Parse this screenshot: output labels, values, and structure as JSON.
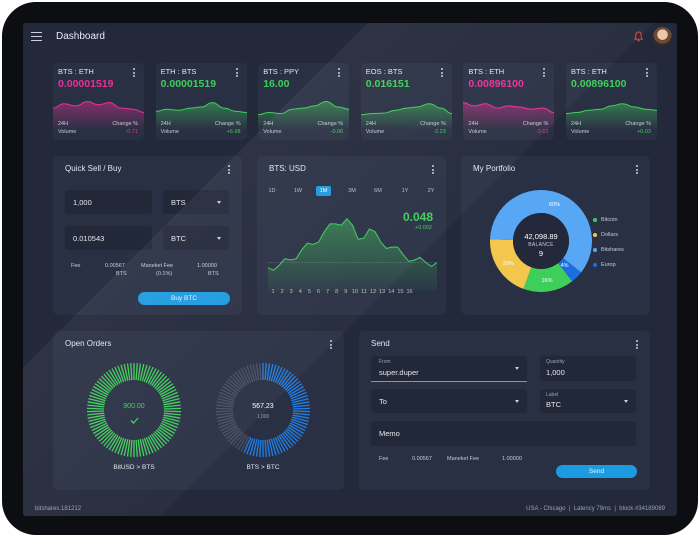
{
  "header": {
    "title": "Dashboard"
  },
  "tickers": [
    {
      "pair": "BTS : ETH",
      "price": "0.00001519",
      "price_color": "#ee2e9a",
      "period": "24H",
      "volume_label": "Volume",
      "change_label": "Change %",
      "change": "-0.71",
      "change_color": "#ee2e9a"
    },
    {
      "pair": "ETH : BTS",
      "price": "0.00001519",
      "price_color": "#3ecf5a",
      "period": "24H",
      "volume_label": "Volume",
      "change_label": "Change %",
      "change": "+6.68",
      "change_color": "#3ecf5a"
    },
    {
      "pair": "BTS : PPY",
      "price": "16.00",
      "price_color": "#3ecf5a",
      "period": "24H",
      "volume_label": "Volume",
      "change_label": "Change %",
      "change": "-0.06",
      "change_color": "#3ecf5a"
    },
    {
      "pair": "EOS : BTS",
      "price": "0.016151",
      "price_color": "#3ecf5a",
      "period": "24H",
      "volume_label": "Volume",
      "change_label": "Change %",
      "change": "-2.23",
      "change_color": "#3ecf5a"
    },
    {
      "pair": "BTS : ETH",
      "price": "0.00896100",
      "price_color": "#ee2e9a",
      "period": "24H",
      "volume_label": "Volume",
      "change_label": "Change %",
      "change": "-3.62",
      "change_color": "#ee2e9a"
    },
    {
      "pair": "BTS : ETH",
      "price": "0.00896100",
      "price_color": "#3ecf5a",
      "period": "24H",
      "volume_label": "Volume",
      "change_label": "Change %",
      "change": "+0.03",
      "change_color": "#3ecf5a"
    }
  ],
  "quick": {
    "title": "Quick Sell / Buy",
    "amount": "1,000",
    "asset1": "BTS",
    "price": "0.010543",
    "asset2": "BTC",
    "fee_label": "Fee",
    "fee_value": "0.00567",
    "fee_unit": "BTS",
    "market_fee_label": "Maneket Fee",
    "market_fee_pct": "(0.1%)",
    "market_fee_value": "1.00000",
    "market_fee_unit": "BTS",
    "button": "Buy BTC"
  },
  "btsusd": {
    "title": "BTS: USD",
    "ranges": [
      "1D",
      "1W",
      "1M",
      "3M",
      "6M",
      "1Y",
      "2Y"
    ],
    "active_range": "1M",
    "value": "0.048",
    "change": "+0.002"
  },
  "portfolio": {
    "title": "My Portfolio",
    "total": "42,098.89",
    "balance_label": "BALANCE",
    "balance_count": "9",
    "legend": [
      {
        "name": "Bitcoin",
        "color": "#3ecf5a"
      },
      {
        "name": "Dollars",
        "color": "#f3c64c"
      },
      {
        "name": "Bitshares",
        "color": "#58a7f5"
      },
      {
        "name": "Europ",
        "color": "#1a6fe0"
      }
    ]
  },
  "chart_data": [
    {
      "type": "area",
      "title": "BTS: USD",
      "x": [
        1,
        2,
        3,
        4,
        5,
        6,
        7,
        8,
        9,
        10,
        11,
        12,
        13,
        14,
        15,
        16
      ],
      "series": [
        {
          "values": [
            0.034,
            0.035,
            0.037,
            0.041,
            0.043,
            0.048,
            0.051,
            0.053,
            0.045,
            0.049,
            0.044,
            0.042,
            0.039,
            0.037,
            0.036,
            0.036
          ]
        }
      ],
      "ylim": [
        0.03,
        0.056
      ],
      "grid": false
    },
    {
      "type": "pie",
      "title": "My Portfolio",
      "categories": [
        "Bitcoin",
        "Dollars",
        "Bitshares",
        "Europ"
      ],
      "values": [
        16,
        20,
        60,
        4
      ],
      "labels": [
        "16%",
        "20%",
        "60%",
        "4%"
      ]
    }
  ],
  "open_orders": {
    "title": "Open Orders",
    "orders": [
      {
        "value": "900.00",
        "label": "BitUSD > BTS",
        "fill": 1.0,
        "color": "#3ecf5a"
      },
      {
        "value": "567.23",
        "sub": "1,000",
        "label": "BTS > BTC",
        "fill": 0.567,
        "color": "#1e7fe8"
      }
    ]
  },
  "send": {
    "title": "Send",
    "from_label": "From",
    "from_value": "super.duper",
    "quantity_label": "Quantity",
    "quantity_value": "1,000",
    "to_label": "To",
    "asset_label": "Label",
    "asset_value": "BTC",
    "memo_label": "Memo",
    "fee_label": "Fee",
    "fee_value": "0.00567",
    "market_fee_label": "Maneket Fee",
    "market_fee_value": "1.00000",
    "button": "Send"
  },
  "status": {
    "left": "bitshares.181212",
    "right": "USA - Chicago  |  Latency 79ms  |  block #34189089"
  }
}
